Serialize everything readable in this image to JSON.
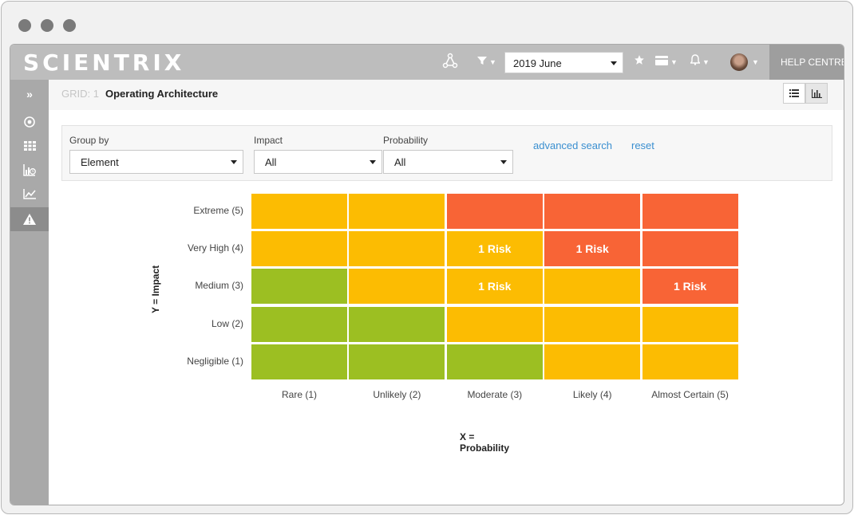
{
  "app": {
    "logo": "SCIENTRIX"
  },
  "topbar": {
    "period_value": "2019 June",
    "help_label": "HELP CENTRE",
    "icons": [
      "connections-icon",
      "filter-icon",
      "star-icon",
      "card-icon",
      "bell-icon"
    ]
  },
  "sidebar": {
    "items": [
      "expand-icon",
      "target-icon",
      "grid-icon",
      "chart-clock-icon",
      "line-chart-icon",
      "warning-icon"
    ],
    "active": "warning-icon"
  },
  "breadcrumb": {
    "prefix": "GRID: 1",
    "title": "Operating Architecture"
  },
  "filters": {
    "group_by": {
      "label": "Group by",
      "value": "Element"
    },
    "impact": {
      "label": "Impact",
      "value": "All"
    },
    "probability": {
      "label": "Probability",
      "value": "All"
    },
    "advanced_search": "advanced search",
    "reset": "reset"
  },
  "matrix": {
    "y_axis_title": "Y = Impact",
    "x_axis_title": "X = Probability",
    "y_labels": [
      "Extreme (5)",
      "Very High (4)",
      "Medium (3)",
      "Low (2)",
      "Negligible (1)"
    ],
    "x_labels": [
      "Rare (1)",
      "Unlikely (2)",
      "Moderate (3)",
      "Likely (4)",
      "Almost Certain (5)"
    ],
    "colors": {
      "green": "#9cbf22",
      "amber": "#fcbc02",
      "red": "#f86436"
    },
    "rows": [
      [
        {
          "c": "amber",
          "t": ""
        },
        {
          "c": "amber",
          "t": ""
        },
        {
          "c": "red",
          "t": ""
        },
        {
          "c": "red",
          "t": ""
        },
        {
          "c": "red",
          "t": ""
        }
      ],
      [
        {
          "c": "amber",
          "t": ""
        },
        {
          "c": "amber",
          "t": ""
        },
        {
          "c": "amber",
          "t": "1 Risk"
        },
        {
          "c": "red",
          "t": "1 Risk"
        },
        {
          "c": "red",
          "t": ""
        }
      ],
      [
        {
          "c": "green",
          "t": ""
        },
        {
          "c": "amber",
          "t": ""
        },
        {
          "c": "amber",
          "t": "1 Risk"
        },
        {
          "c": "amber",
          "t": ""
        },
        {
          "c": "red",
          "t": "1 Risk"
        }
      ],
      [
        {
          "c": "green",
          "t": ""
        },
        {
          "c": "green",
          "t": ""
        },
        {
          "c": "amber",
          "t": ""
        },
        {
          "c": "amber",
          "t": ""
        },
        {
          "c": "amber",
          "t": ""
        }
      ],
      [
        {
          "c": "green",
          "t": ""
        },
        {
          "c": "green",
          "t": ""
        },
        {
          "c": "green",
          "t": ""
        },
        {
          "c": "amber",
          "t": ""
        },
        {
          "c": "amber",
          "t": ""
        }
      ]
    ]
  }
}
